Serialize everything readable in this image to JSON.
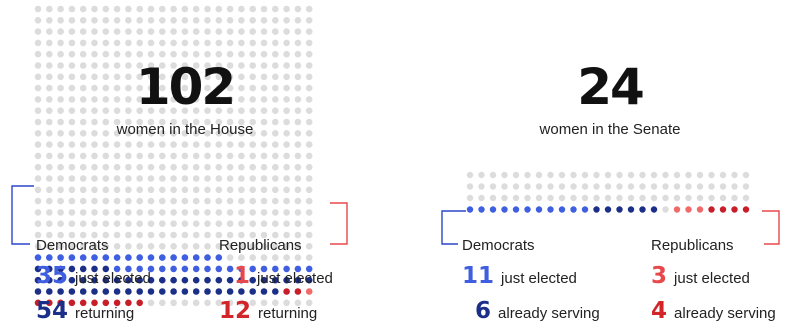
{
  "chart_data": [
    {
      "type": "waffle",
      "total": "102",
      "caption": "women in the House",
      "colors": {
        "dem_new": "#3f5fe0",
        "dem_old": "#1c2f88",
        "rep_new": "#f06a6a",
        "rep_old": "#c81e2a",
        "empty": "#dcdcdc"
      },
      "groups": [
        {
          "party": "Democrats",
          "values": [
            {
              "count": 35,
              "label": "just elected"
            },
            {
              "count": 54,
              "label": "returning"
            }
          ]
        },
        {
          "party": "Republicans",
          "values": [
            {
              "count": 1,
              "label": "just elected"
            },
            {
              "count": 12,
              "label": "returning"
            }
          ]
        }
      ]
    },
    {
      "type": "waffle",
      "total": "24",
      "caption": "women in the Senate",
      "colors": {
        "dem_new": "#3f5fe0",
        "dem_old": "#1c2f88",
        "rep_new": "#f06a6a",
        "rep_old": "#c81e2a",
        "empty": "#dcdcdc"
      },
      "groups": [
        {
          "party": "Democrats",
          "values": [
            {
              "count": 11,
              "label": "just elected"
            },
            {
              "count": 6,
              "label": "already serving"
            }
          ]
        },
        {
          "party": "Republicans",
          "values": [
            {
              "count": 3,
              "label": "just elected"
            },
            {
              "count": 4,
              "label": "already serving"
            }
          ]
        }
      ]
    }
  ]
}
